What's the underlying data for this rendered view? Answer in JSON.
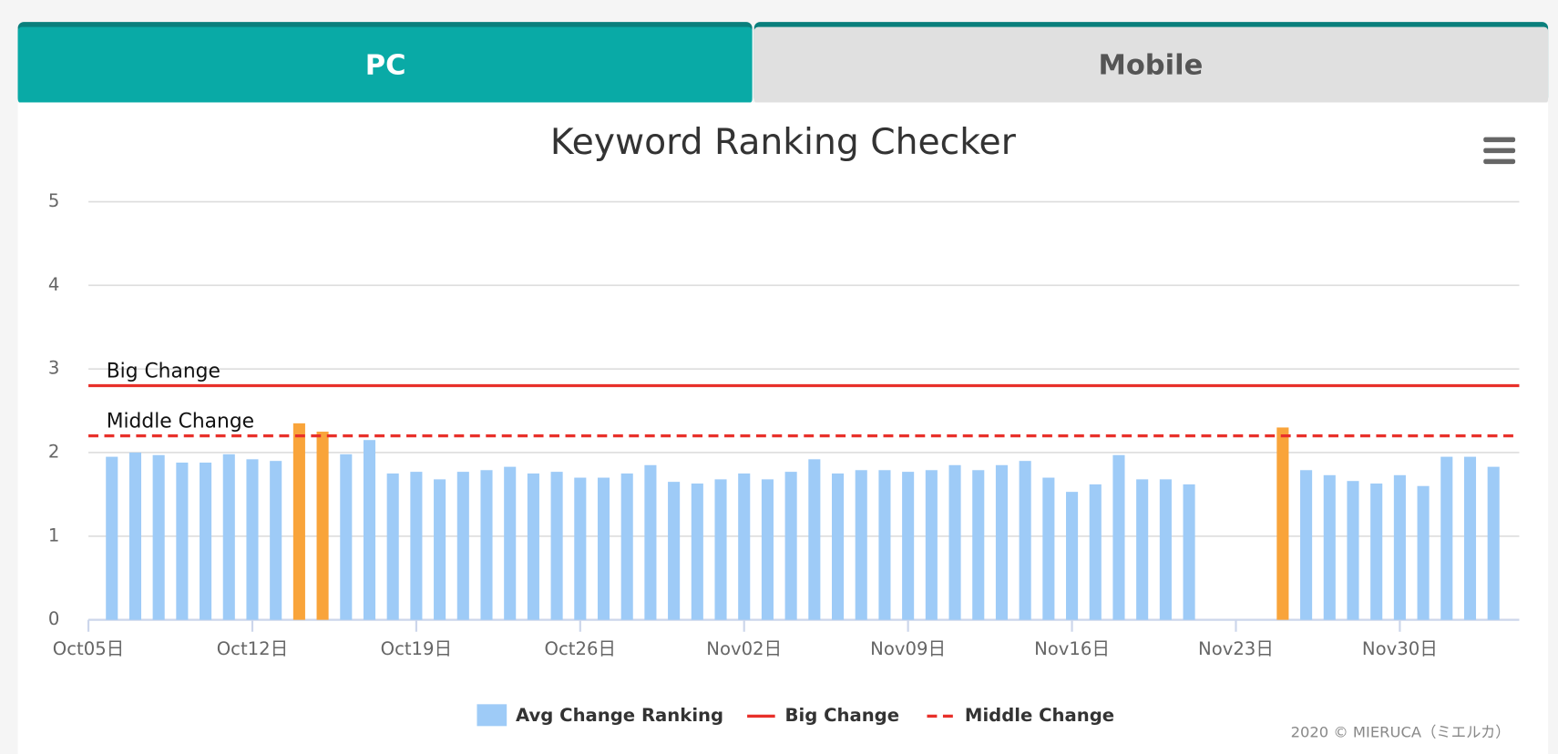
{
  "tabs": [
    "PC",
    "Mobile"
  ],
  "chart_data": {
    "type": "bar",
    "title": "Keyword Ranking Checker",
    "categories": [
      "Oct05日",
      null,
      null,
      null,
      null,
      null,
      null,
      "Oct12日",
      null,
      null,
      null,
      null,
      null,
      null,
      "Oct19日",
      null,
      null,
      null,
      null,
      null,
      null,
      "Oct26日",
      null,
      null,
      null,
      null,
      null,
      null,
      "Nov02日",
      null,
      null,
      null,
      null,
      null,
      null,
      "Nov09日",
      null,
      null,
      null,
      null,
      null,
      null,
      "Nov16日",
      null,
      null,
      null,
      null,
      null,
      null,
      "Nov23日",
      null,
      null,
      null,
      null,
      null,
      null,
      "Nov30日",
      null,
      null,
      null,
      null
    ],
    "series": [
      {
        "name": "Avg Change Ranking",
        "color": "#9ecbf7",
        "values": [
          null,
          1.95,
          2.0,
          1.97,
          1.88,
          1.88,
          1.98,
          1.92,
          1.9,
          2.35,
          2.25,
          1.98,
          2.15,
          1.75,
          1.77,
          1.68,
          1.77,
          1.79,
          1.83,
          1.75,
          1.77,
          1.7,
          1.7,
          1.75,
          1.85,
          1.65,
          1.63,
          1.68,
          1.75,
          1.68,
          1.77,
          1.92,
          1.75,
          1.79,
          1.79,
          1.77,
          1.79,
          1.85,
          1.79,
          1.85,
          1.9,
          1.7,
          1.53,
          1.62,
          1.97,
          1.68,
          1.68,
          1.62,
          null,
          null,
          null,
          2.3,
          1.79,
          1.73,
          1.66,
          1.63,
          1.73,
          1.6,
          1.95,
          1.95,
          1.83
        ]
      }
    ],
    "highlight_color": "#f9a43a",
    "reference_lines": [
      {
        "name": "Big Change",
        "value": 2.8,
        "color": "#e8302a",
        "dashed": false
      },
      {
        "name": "Middle Change",
        "value": 2.2,
        "color": "#e8302a",
        "dashed": true
      }
    ],
    "ylim": [
      0,
      5
    ],
    "yticks": [
      0,
      1,
      2,
      3,
      4,
      5
    ],
    "grid": true
  },
  "footer": "2020 © MIERUCA（ミエルカ）"
}
